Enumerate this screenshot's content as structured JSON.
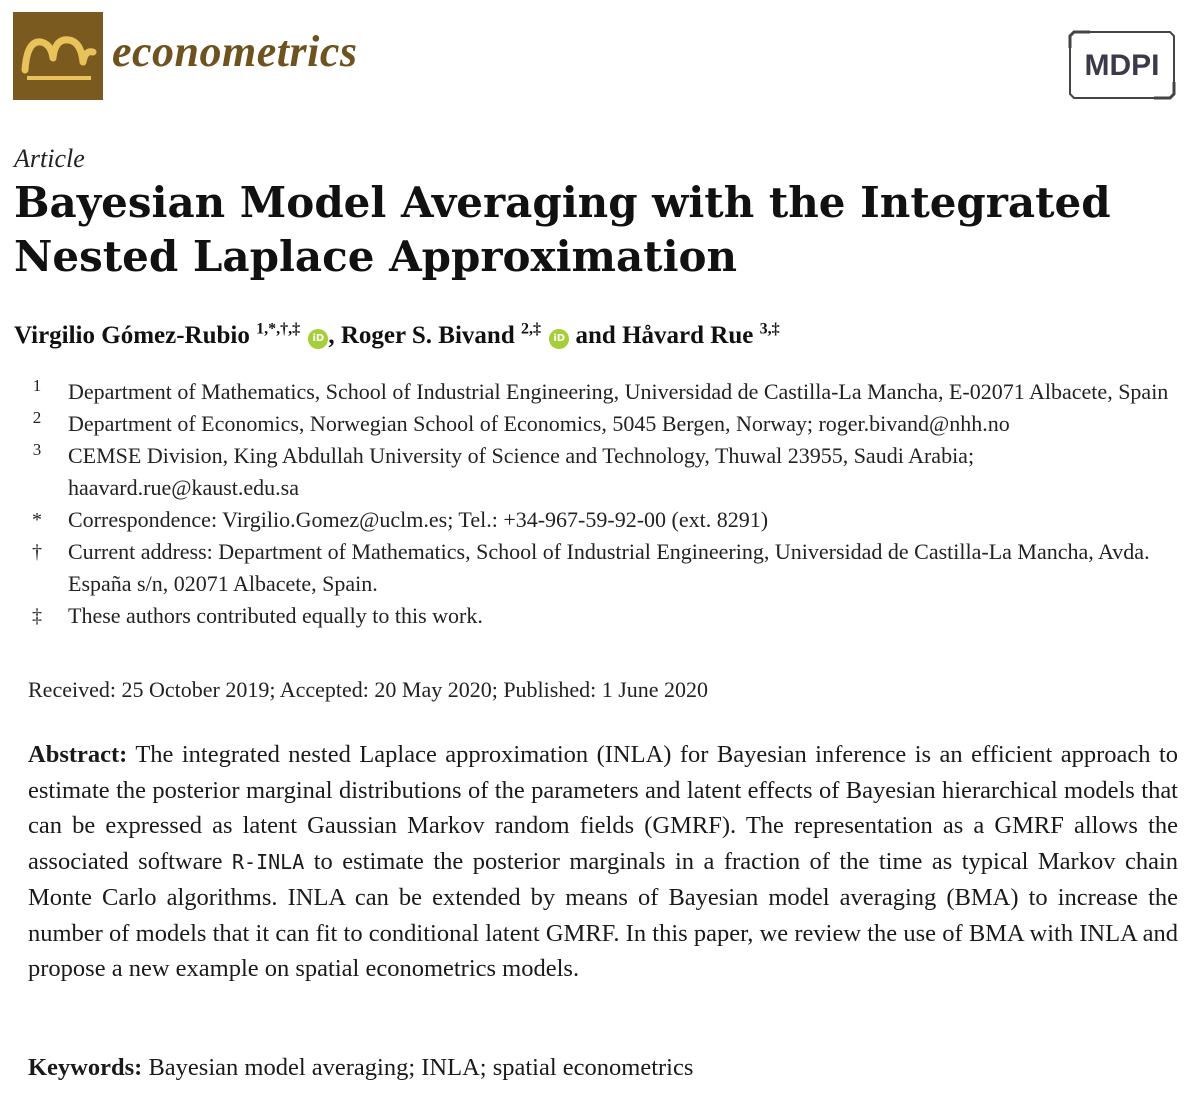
{
  "header": {
    "journal_name": "econometrics",
    "publisher": "MDPI",
    "colors": {
      "brand": "#7a5a1e",
      "gold": "#e8c25a",
      "journal_text": "#6e5220"
    }
  },
  "article": {
    "type": "Article",
    "title": "Bayesian Model Averaging with the Integrated Nested Laplace Approximation"
  },
  "authors": [
    {
      "name": "Virgilio Gómez-Rubio",
      "marks": "1,*,†,‡",
      "orcid": "iD",
      "sep": ", "
    },
    {
      "name": "Roger S. Bivand",
      "marks": "2,‡",
      "orcid": "iD",
      "sep": " and "
    },
    {
      "name": "Håvard Rue",
      "marks": "3,‡"
    }
  ],
  "affiliations": [
    {
      "mark": "1",
      "text": "Department of Mathematics, School of Industrial Engineering, Universidad de Castilla-La Mancha, E-02071 Albacete, Spain"
    },
    {
      "mark": "2",
      "text": "Department of Economics, Norwegian School of Economics, 5045 Bergen, Norway; roger.bivand@nhh.no"
    },
    {
      "mark": "3",
      "text": "CEMSE Division, King Abdullah University of Science and Technology, Thuwal 23955, Saudi Arabia; haavard.rue@kaust.edu.sa"
    },
    {
      "mark": "*",
      "text": "Correspondence: Virgilio.Gomez@uclm.es; Tel.: +34-967-59-92-00 (ext. 8291)"
    },
    {
      "mark": "†",
      "text": "Current address: Department of Mathematics, School of Industrial Engineering, Universidad de Castilla-La Mancha, Avda. España s/n, 02071 Albacete, Spain."
    },
    {
      "mark": "‡",
      "text": "These authors contributed equally to this work."
    }
  ],
  "dates": "Received: 25 October 2019; Accepted: 20 May 2020; Published: 1 June 2020",
  "abstract": {
    "label": "Abstract:",
    "text_1": " The integrated nested Laplace approximation (INLA) for Bayesian inference is an efficient approach to estimate the posterior marginal distributions of the parameters and latent effects of Bayesian hierarchical models that can be expressed as latent Gaussian Markov random fields (GMRF). The representation as a GMRF allows the associated software ",
    "software": "R-INLA",
    "text_2": " to estimate the posterior marginals in a fraction of the time as typical Markov chain Monte Carlo algorithms. INLA can be extended by means of Bayesian model averaging (BMA) to increase the number of models that it can fit to conditional latent GMRF. In this paper, we review the use of BMA with INLA and propose a new example on spatial econometrics models."
  },
  "keywords": {
    "label": "Keywords:",
    "text": " Bayesian model averaging; INLA; spatial econometrics"
  }
}
